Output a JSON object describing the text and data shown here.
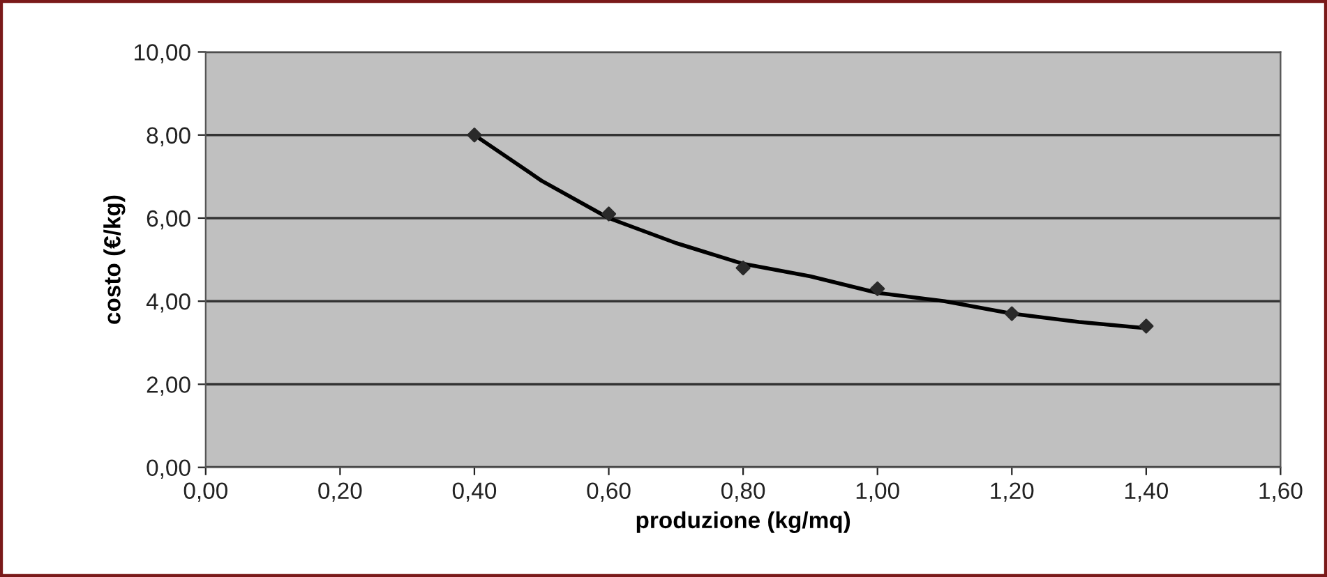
{
  "chart_data": {
    "type": "scatter",
    "xlabel": "produzione (kg/mq)",
    "ylabel": "costo (€/kg)",
    "series": [
      {
        "color": "#2a2a2a",
        "marker": "diamond",
        "x": [
          0.4,
          0.6,
          0.8,
          1.0,
          1.2,
          1.4
        ],
        "values": [
          8.0,
          6.1,
          4.8,
          4.3,
          3.7,
          3.4
        ]
      },
      {
        "type": "line",
        "color": "#000000",
        "x": [
          0.4,
          0.5,
          0.6,
          0.7,
          0.8,
          0.9,
          1.0,
          1.1,
          1.2,
          1.3,
          1.4
        ],
        "values": [
          8.0,
          6.9,
          6.0,
          5.4,
          4.9,
          4.6,
          4.2,
          4.0,
          3.7,
          3.5,
          3.35
        ]
      }
    ],
    "xlim": [
      0,
      1.6
    ],
    "xticks": [
      {
        "value": 0,
        "label": "0,00"
      },
      {
        "value": 0.2,
        "label": "0,20"
      },
      {
        "value": 0.4,
        "label": "0,40"
      },
      {
        "value": 0.6,
        "label": "0,60"
      },
      {
        "value": 0.8,
        "label": "0,80"
      },
      {
        "value": 1.0,
        "label": "1,00"
      },
      {
        "value": 1.2,
        "label": "1,20"
      },
      {
        "value": 1.4,
        "label": "1,40"
      },
      {
        "value": 1.6,
        "label": "1,60"
      }
    ],
    "ylim": [
      0,
      10
    ],
    "yticks": [
      {
        "value": 0,
        "label": "0,00"
      },
      {
        "value": 2,
        "label": "2,00"
      },
      {
        "value": 4,
        "label": "4,00"
      },
      {
        "value": 6,
        "label": "6,00"
      },
      {
        "value": 8,
        "label": "8,00"
      },
      {
        "value": 10,
        "label": "10,00"
      }
    ],
    "grid": "y"
  }
}
